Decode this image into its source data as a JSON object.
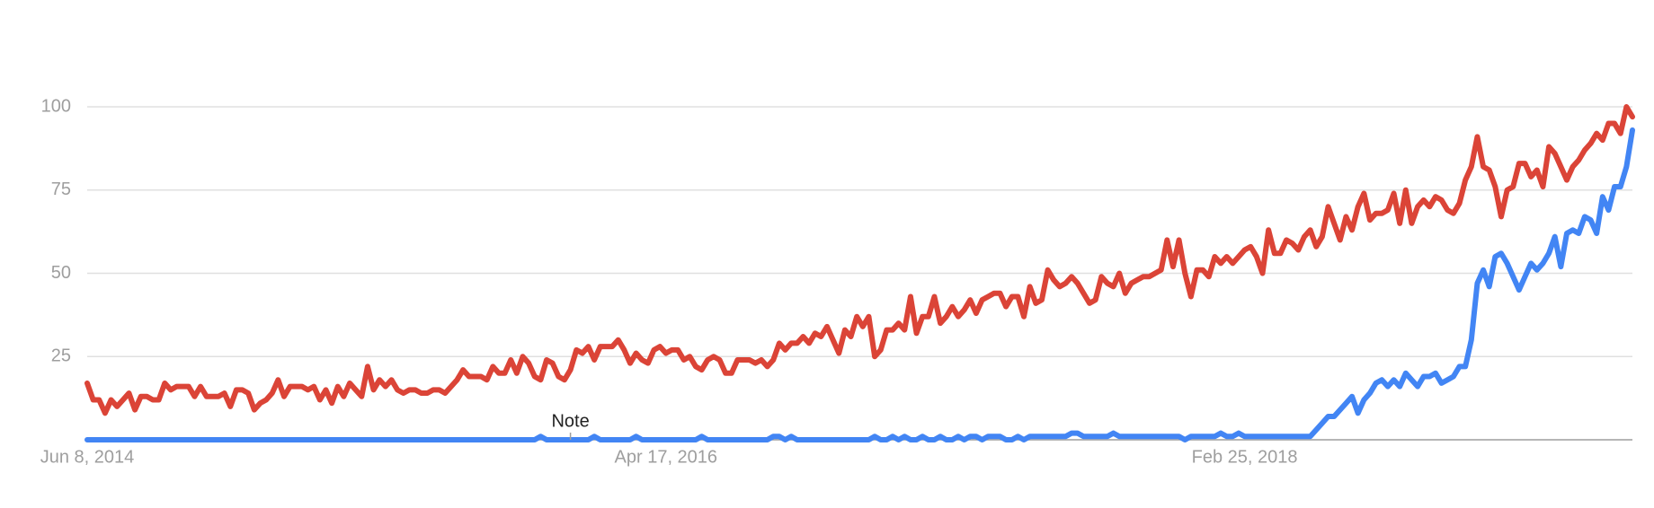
{
  "chart_data": {
    "type": "line",
    "categories": [
      "Jun 8, 2014",
      null,
      null,
      null,
      null,
      null,
      null,
      null,
      null,
      null,
      null,
      null,
      null,
      null,
      null,
      null,
      null,
      null,
      null,
      null,
      null,
      null,
      null,
      null,
      null,
      null,
      null,
      null,
      null,
      null,
      null,
      null,
      null,
      null,
      null,
      null,
      null,
      null,
      null,
      null,
      null,
      null,
      null,
      null,
      null,
      null,
      null,
      null,
      null,
      null,
      null,
      null,
      null,
      null,
      null,
      null,
      null,
      null,
      null,
      null,
      null,
      null,
      null,
      null,
      null,
      null,
      null,
      null,
      null,
      null,
      null,
      null,
      null,
      null,
      null,
      null,
      null,
      null,
      null,
      null,
      null,
      null,
      null,
      null,
      null,
      null,
      null,
      null,
      null,
      null,
      null,
      null,
      null,
      null,
      null,
      null,
      null,
      "Apr 17, 2016",
      null,
      null,
      null,
      null,
      null,
      null,
      null,
      null,
      null,
      null,
      null,
      null,
      null,
      null,
      null,
      null,
      null,
      null,
      null,
      null,
      null,
      null,
      null,
      null,
      null,
      null,
      null,
      null,
      null,
      null,
      null,
      null,
      null,
      null,
      null,
      null,
      null,
      null,
      null,
      null,
      null,
      null,
      null,
      null,
      null,
      null,
      null,
      null,
      null,
      null,
      null,
      null,
      null,
      null,
      null,
      null,
      null,
      null,
      null,
      null,
      null,
      null,
      null,
      null,
      null,
      null,
      null,
      null,
      null,
      null,
      null,
      null,
      null,
      null,
      null,
      null,
      null,
      null,
      null,
      null,
      null,
      null,
      null,
      null,
      null,
      null,
      null,
      null,
      null,
      null,
      null,
      null,
      null,
      null,
      null,
      null,
      "Feb 25, 2018",
      null,
      null,
      null,
      null,
      null,
      null,
      null,
      null,
      null,
      null,
      null,
      null,
      null,
      null,
      null,
      null,
      null,
      null,
      null,
      null,
      null,
      null,
      null,
      null,
      null,
      null,
      null,
      null,
      null,
      null,
      null,
      null,
      null,
      null,
      null,
      null,
      null,
      null,
      null,
      null,
      null,
      null,
      null,
      null,
      null,
      null,
      null,
      null,
      null,
      null,
      null,
      null,
      null,
      null,
      null,
      null,
      null,
      null,
      null,
      null,
      null,
      null,
      null,
      null,
      null
    ],
    "series": [
      {
        "color": "#db4437",
        "values": [
          17,
          12,
          12,
          8,
          12,
          10,
          12,
          14,
          9,
          13,
          13,
          12,
          12,
          17,
          15,
          16,
          16,
          16,
          13,
          16,
          13,
          13,
          13,
          14,
          10,
          15,
          15,
          14,
          9,
          11,
          12,
          14,
          18,
          13,
          16,
          16,
          16,
          15,
          16,
          12,
          15,
          11,
          16,
          13,
          17,
          15,
          13,
          22,
          15,
          18,
          16,
          18,
          15,
          14,
          15,
          15,
          14,
          14,
          15,
          15,
          14,
          16,
          18,
          21,
          19,
          19,
          19,
          18,
          22,
          20,
          20,
          24,
          20,
          25,
          23,
          19,
          18,
          24,
          23,
          19,
          18,
          21,
          27,
          26,
          28,
          24,
          28,
          28,
          28,
          30,
          27,
          23,
          26,
          24,
          23,
          27,
          28,
          26,
          27,
          27,
          24,
          25,
          22,
          21,
          24,
          25,
          24,
          20,
          20,
          24,
          24,
          24,
          23,
          24,
          22,
          24,
          29,
          27,
          29,
          29,
          31,
          29,
          32,
          31,
          34,
          30,
          26,
          33,
          31,
          37,
          34,
          37,
          25,
          27,
          33,
          33,
          35,
          33,
          43,
          32,
          37,
          37,
          43,
          35,
          37,
          40,
          37,
          39,
          42,
          38,
          42,
          43,
          44,
          44,
          40,
          43,
          43,
          37,
          46,
          41,
          42,
          51,
          48,
          46,
          47,
          49,
          47,
          44,
          41,
          42,
          49,
          47,
          46,
          50,
          44,
          47,
          48,
          49,
          49,
          50,
          51,
          60,
          52,
          60,
          50,
          43,
          51,
          51,
          49,
          55,
          53,
          55,
          53,
          55,
          57,
          58,
          55,
          50,
          63,
          56,
          56,
          60,
          59,
          57,
          61,
          63,
          58,
          61,
          70,
          65,
          60,
          67,
          63,
          70,
          74,
          66,
          68,
          68,
          69,
          74,
          65,
          75,
          65,
          70,
          72,
          70,
          73,
          72,
          69,
          68,
          71,
          78,
          82,
          91,
          82,
          81,
          76,
          67,
          75,
          76,
          83,
          83,
          79,
          81,
          76,
          88,
          86,
          82,
          78,
          82,
          84,
          87,
          89,
          92,
          90,
          95,
          95,
          92,
          100,
          97
        ]
      },
      {
        "color": "#4285f4",
        "values": [
          0,
          0,
          0,
          0,
          0,
          0,
          0,
          0,
          0,
          0,
          0,
          0,
          0,
          0,
          0,
          0,
          0,
          0,
          0,
          0,
          0,
          0,
          0,
          0,
          0,
          0,
          0,
          0,
          0,
          0,
          0,
          0,
          0,
          0,
          0,
          0,
          0,
          0,
          0,
          0,
          0,
          0,
          0,
          0,
          0,
          0,
          0,
          0,
          0,
          0,
          0,
          0,
          0,
          0,
          0,
          0,
          0,
          0,
          0,
          0,
          0,
          0,
          0,
          0,
          0,
          0,
          0,
          0,
          0,
          0,
          0,
          0,
          0,
          0,
          0,
          0,
          1,
          0,
          0,
          0,
          0,
          0,
          0,
          0,
          0,
          1,
          0,
          0,
          0,
          0,
          0,
          0,
          1,
          0,
          0,
          0,
          0,
          0,
          0,
          0,
          0,
          0,
          0,
          1,
          0,
          0,
          0,
          0,
          0,
          0,
          0,
          0,
          0,
          0,
          0,
          1,
          1,
          0,
          1,
          0,
          0,
          0,
          0,
          0,
          0,
          0,
          0,
          0,
          0,
          0,
          0,
          0,
          1,
          0,
          0,
          1,
          0,
          1,
          0,
          0,
          1,
          0,
          0,
          1,
          0,
          0,
          1,
          0,
          1,
          1,
          0,
          1,
          1,
          1,
          0,
          0,
          1,
          0,
          1,
          1,
          1,
          1,
          1,
          1,
          1,
          2,
          2,
          1,
          1,
          1,
          1,
          1,
          2,
          1,
          1,
          1,
          1,
          1,
          1,
          1,
          1,
          1,
          1,
          1,
          0,
          1,
          1,
          1,
          1,
          1,
          2,
          1,
          1,
          2,
          1,
          1,
          1,
          1,
          1,
          1,
          1,
          1,
          1,
          1,
          1,
          1,
          3,
          5,
          7,
          7,
          9,
          11,
          13,
          8,
          12,
          14,
          17,
          18,
          16,
          18,
          16,
          20,
          18,
          16,
          19,
          19,
          20,
          17,
          18,
          19,
          22,
          22,
          30,
          47,
          51,
          46,
          55,
          56,
          53,
          49,
          45,
          49,
          53,
          51,
          53,
          56,
          61,
          52,
          62,
          63,
          62,
          67,
          66,
          62,
          73,
          69,
          76,
          76,
          82,
          93
        ]
      }
    ],
    "ylim": [
      0,
      100
    ],
    "yticks": [
      25,
      50,
      75,
      100
    ],
    "grid": true,
    "annotations": [
      {
        "text": "Note",
        "index": 81
      }
    ]
  }
}
